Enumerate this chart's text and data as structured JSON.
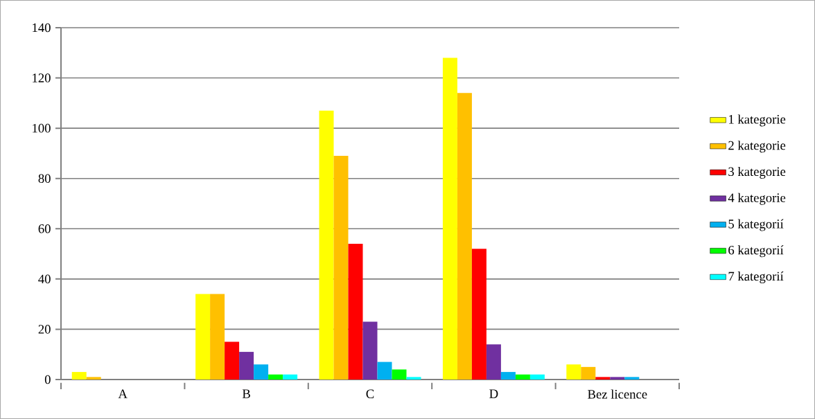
{
  "chart_data": {
    "type": "bar",
    "categories": [
      "A",
      "B",
      "C",
      "D",
      "Bez licence"
    ],
    "series": [
      {
        "name": "1 kategorie",
        "color": "#ffff00",
        "values": [
          3,
          34,
          107,
          128,
          6
        ]
      },
      {
        "name": "2 kategorie",
        "color": "#ffc000",
        "values": [
          1,
          34,
          89,
          114,
          5
        ]
      },
      {
        "name": "3 kategorie",
        "color": "#ff0000",
        "values": [
          0,
          15,
          54,
          52,
          1
        ]
      },
      {
        "name": "4 kategorie",
        "color": "#7030a0",
        "values": [
          0,
          11,
          23,
          14,
          1
        ]
      },
      {
        "name": "5 kategorií",
        "color": "#00b0f0",
        "values": [
          0,
          6,
          7,
          3,
          1
        ]
      },
      {
        "name": "6 kategorií",
        "color": "#00ff00",
        "values": [
          0,
          2,
          4,
          2,
          0
        ]
      },
      {
        "name": "7 kategorií",
        "color": "#00ffff",
        "values": [
          0,
          2,
          1,
          2,
          0
        ]
      }
    ],
    "ylim": [
      0,
      140
    ],
    "yticks": [
      0,
      20,
      40,
      60,
      80,
      100,
      120,
      140
    ],
    "grid": "y",
    "legend": "right"
  }
}
